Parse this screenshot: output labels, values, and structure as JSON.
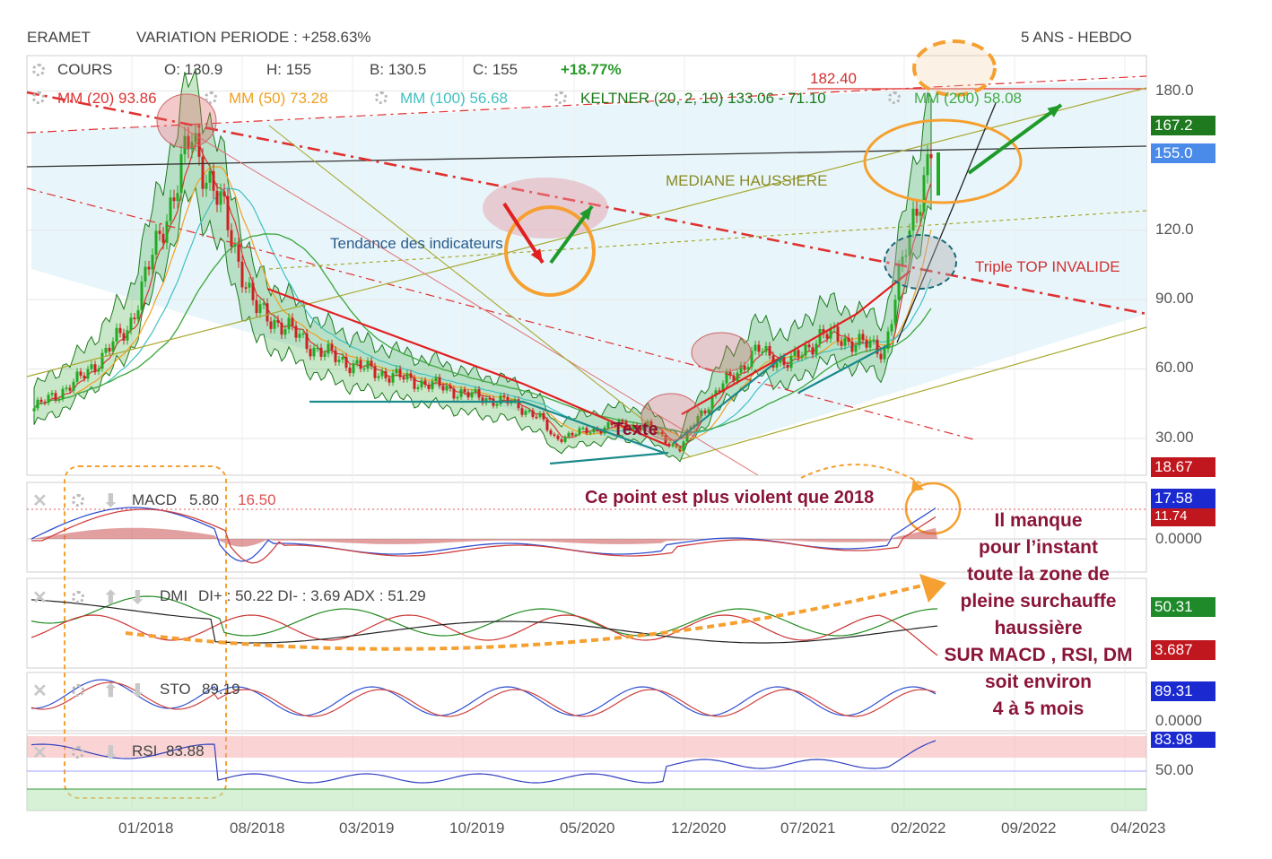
{
  "header": {
    "symbol": "ERAMET",
    "variation": "VARIATION PERIODE : +258.63%",
    "period": "5 ANS - HEBDO"
  },
  "legend": {
    "cours": "COURS",
    "open": "O: 130.9",
    "high": "H: 155",
    "low": "B: 130.5",
    "close": "C: 155",
    "change": "+18.77%",
    "mm20": "MM (20) 93.86",
    "mm50": "MM (50) 73.28",
    "mm100": "MM (100) 56.68",
    "keltner": "KELTNER (20, 2, 10) 133.06 - 71.10",
    "mm200": "MM (200) 58.08"
  },
  "colors": {
    "up": "#22aa22",
    "down": "#cc2222",
    "mm20": "#dd3333",
    "mm50": "#f0a020",
    "mm100": "#40c0c0",
    "mm200": "#44aa44",
    "keltner": "#1d7a1d",
    "annotation_red": "#e02020",
    "annotation_orange": "#f5a030",
    "note": "#8b1538"
  },
  "icons": [
    "gear-icon",
    "close-icon",
    "arrow-down-icon",
    "arrow-up-icon"
  ],
  "y_ticks": [
    "180.0",
    "120.0",
    "90.00",
    "60.00",
    "30.00"
  ],
  "x_ticks": [
    "01/2018",
    "08/2018",
    "03/2019",
    "10/2019",
    "05/2020",
    "12/2020",
    "07/2021",
    "02/2022",
    "09/2022",
    "04/2023"
  ],
  "badges": {
    "b1": "167.2",
    "b2": "155.0",
    "b3": "18.67",
    "macd1": "17.58",
    "macd2": "11.74",
    "dmi1": "50.31",
    "dmi2": "3.687",
    "sto1": "89.31",
    "rsi1": "83.98"
  },
  "panels": {
    "macd": "MACD",
    "macd_val": "5.80",
    "macd_sig": "16.50",
    "macd_zero": "0.0000",
    "dmi": "DMI",
    "dmi_vals": "DI+ : 50.22 DI- : 3.69 ADX : 51.29",
    "sto": "STO",
    "sto_val": "89.19",
    "sto_zero": "0.0000",
    "rsi": "RSI",
    "rsi_val": "83.88",
    "rsi_50": "50.00"
  },
  "annotations": {
    "resistance": "182.40",
    "median": "MEDIANE HAUSSIERE",
    "trend": "Tendance des indicateurs",
    "triple": "Triple TOP INVALIDE",
    "texte": "Texte",
    "violent": "Ce point est plus violent que 2018",
    "note_lines": [
      "Il manque",
      "pour l’instant",
      "toute la zone de",
      "pleine surchauffe",
      "haussière",
      "SUR MACD , RSI, DM",
      "soit environ",
      "4 à 5 mois"
    ]
  },
  "chart_data": {
    "type": "line",
    "title": "ERAMET",
    "period": "5 ANS - HEBDO",
    "x": [
      "2017-06",
      "2017-09",
      "2017-12",
      "2018-02",
      "2018-04",
      "2018-06",
      "2018-08",
      "2018-10",
      "2018-12",
      "2019-03",
      "2019-06",
      "2019-08",
      "2019-10",
      "2019-12",
      "2020-02",
      "2020-03",
      "2020-05",
      "2020-07",
      "2020-09",
      "2020-11",
      "2020-12",
      "2021-02",
      "2021-04",
      "2021-06",
      "2021-08",
      "2021-10",
      "2021-12",
      "2022-01",
      "2022-02",
      "2022-03"
    ],
    "series": [
      {
        "name": "COURS",
        "values": [
          43,
          56,
          78,
          118,
          160,
          128,
          86,
          78,
          68,
          60,
          55,
          52,
          48,
          46,
          40,
          30,
          33,
          36,
          35,
          25,
          38,
          55,
          68,
          62,
          75,
          72,
          68,
          100,
          130,
          155
        ]
      }
    ],
    "ylim": [
      18,
      190
    ],
    "y_ticks": [
      30,
      60,
      90,
      120,
      180
    ],
    "last": {
      "open": 130.9,
      "high": 155,
      "low": 130.5,
      "close": 155,
      "change_pct": 18.77
    }
  }
}
